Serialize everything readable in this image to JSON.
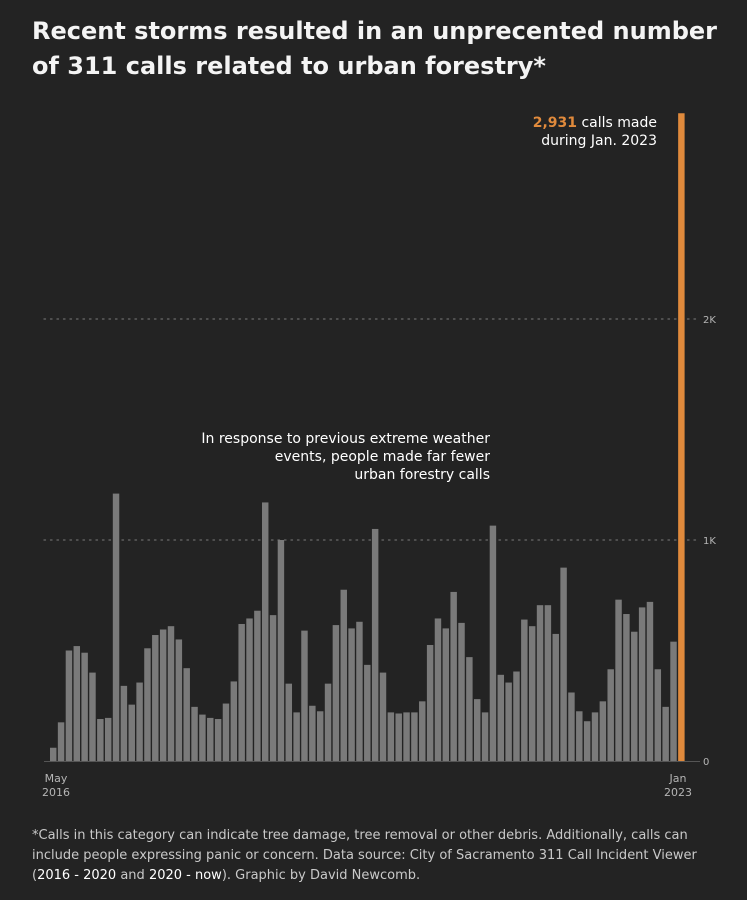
{
  "title": "Recent storms resulted in an unprecented number of 311 calls related to urban forestry*",
  "highlight": {
    "value": "2,931",
    "line1_suffix": " calls made",
    "line2": "during Jan. 2023"
  },
  "annotation": {
    "lines": [
      "In response to previous extreme weather",
      "events, people made far fewer",
      "urban forestry calls"
    ]
  },
  "footnote": {
    "part1": "*Calls in this category can indicate tree damage, tree removal or other debris. Additionally, calls can include people expressing panic or concern. Data source: City of Sacramento 311 Call Incident Viewer (",
    "link1": "2016 - 2020",
    "part2": " and ",
    "link2": "2020 - now",
    "part3": "). Graphic by David Newcomb."
  },
  "colors": {
    "background": "#232323",
    "bar": "#7a7a7a",
    "highlight": "#e08a3c",
    "grid": "#6a6a6a",
    "axis_text": "#b5b5b5"
  },
  "chart_data": {
    "type": "bar",
    "x_start_label": [
      "May",
      "2016"
    ],
    "x_end_label": [
      "Jan",
      "2023"
    ],
    "yticks": [
      {
        "value": 0,
        "label": "0"
      },
      {
        "value": 1000,
        "label": "1K"
      },
      {
        "value": 2000,
        "label": "2K"
      }
    ],
    "ylim": [
      0,
      3000
    ],
    "grid": "dotted horizontal at 1K and 2K",
    "highlight_index": 80,
    "values": [
      60,
      175,
      500,
      520,
      490,
      400,
      190,
      195,
      1210,
      340,
      255,
      355,
      510,
      570,
      595,
      610,
      550,
      420,
      245,
      210,
      195,
      190,
      260,
      360,
      620,
      645,
      680,
      1170,
      660,
      1000,
      350,
      220,
      590,
      250,
      225,
      350,
      615,
      775,
      600,
      630,
      435,
      1050,
      400,
      220,
      215,
      220,
      220,
      270,
      525,
      645,
      600,
      765,
      625,
      470,
      280,
      220,
      1065,
      390,
      355,
      405,
      640,
      610,
      705,
      705,
      575,
      875,
      310,
      225,
      180,
      220,
      270,
      415,
      730,
      665,
      585,
      695,
      720,
      415,
      245,
      540,
      2931
    ]
  }
}
